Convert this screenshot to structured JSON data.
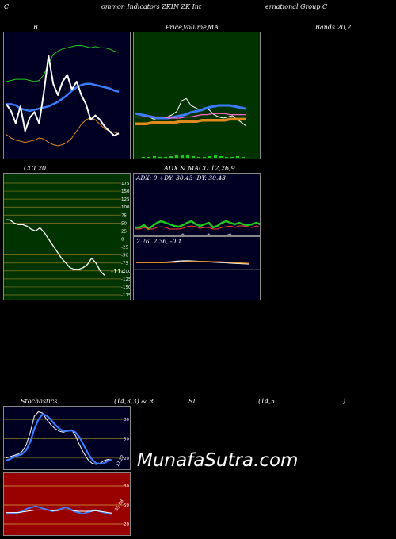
{
  "header": {
    "left": "C",
    "mid": "ommon Indicators ZKIN ZK Int",
    "right": "ernational Group C"
  },
  "titles": {
    "bands_left": "B",
    "bands_price": "Price,",
    "bands_volume": "Volume,",
    "bands_ma": "MA",
    "bands_right": "Bands 20,2",
    "cci": "CCI 20",
    "adx_macd": "ADX  & MACD 12,26,9",
    "stoch": "Stochastics",
    "stoch_params": "(14,3,3) & R",
    "rsi": "SI",
    "rsi_params": "(14,5",
    "rsi_close": ")"
  },
  "adx_readout": "ADX: 0  +DY: 30.43 -DY: 30.43",
  "macd_readout": "2.26,  2.36,  -0.1",
  "watermark": "MunafaSutra.com",
  "colors": {
    "bands_bg": "#000022",
    "price_bg": "#003300",
    "cci_bg": "#003300",
    "adx_bg": "#000022",
    "stoch_bg": "#000022",
    "rsi_bg": "#990000",
    "blue": "#3a7bff",
    "orange": "#e08a1e",
    "green": "#1ec81e"
  },
  "chart_data": [
    {
      "type": "line",
      "name": "bollinger",
      "ylim": [
        0,
        100
      ],
      "series": [
        {
          "name": "upper",
          "color": "#1ec81e",
          "values": [
            62,
            63,
            64,
            64,
            64,
            63,
            62,
            63,
            68,
            78,
            86,
            89,
            91,
            92,
            93,
            94,
            94,
            93,
            92,
            93,
            92,
            92,
            91,
            89,
            88
          ]
        },
        {
          "name": "middle",
          "color": "#3a7bff",
          "values": [
            42,
            42,
            41,
            38,
            37,
            36,
            37,
            38,
            39,
            40,
            42,
            44,
            47,
            50,
            54,
            57,
            59,
            60,
            60,
            59,
            58,
            57,
            56,
            54,
            53
          ]
        },
        {
          "name": "lower",
          "color": "#e08a1e",
          "values": [
            15,
            12,
            10,
            9,
            8,
            9,
            10,
            12,
            11,
            8,
            6,
            5,
            6,
            8,
            12,
            18,
            24,
            28,
            30,
            28,
            24,
            20,
            18,
            17,
            16
          ]
        },
        {
          "name": "price",
          "color": "#ffffff",
          "values": [
            42,
            36,
            25,
            40,
            18,
            30,
            35,
            25,
            52,
            85,
            60,
            50,
            62,
            68,
            55,
            62,
            50,
            42,
            28,
            32,
            28,
            22,
            18,
            14,
            16
          ]
        }
      ]
    },
    {
      "type": "line",
      "name": "price_ma",
      "ylim": [
        0,
        100
      ],
      "series": [
        {
          "name": "price",
          "color": "#ffffff",
          "values": [
            30,
            30,
            30,
            30,
            28,
            29,
            30,
            30,
            32,
            35,
            44,
            46,
            40,
            38,
            36,
            38,
            36,
            32,
            30,
            29,
            30,
            31,
            28,
            25,
            22
          ]
        },
        {
          "name": "ma_short",
          "color": "#3a7bff",
          "values": [
            33,
            32,
            31,
            30,
            29,
            29,
            29,
            30,
            31,
            32,
            34,
            35,
            36,
            38,
            39,
            40,
            40,
            40,
            39,
            38,
            37
          ]
        },
        {
          "name": "ma_mid",
          "color": "#ff66cc",
          "values": [
            30,
            30,
            30,
            30,
            30,
            30,
            29,
            29,
            29,
            30,
            30,
            31,
            32,
            32,
            33,
            33,
            33,
            32,
            32,
            32,
            32
          ]
        },
        {
          "name": "ma_long",
          "color": "#e08a1e",
          "values": [
            24,
            24,
            24,
            25,
            25,
            25,
            25,
            25,
            26,
            26,
            26,
            26,
            27,
            27,
            27,
            27,
            27,
            28,
            28,
            28,
            28
          ]
        }
      ]
    },
    {
      "type": "line",
      "name": "cci",
      "ylim": [
        -175,
        175
      ],
      "ticks": [
        "175",
        "150",
        "125",
        "100",
        "75",
        "50",
        "25",
        "0",
        "-25",
        "-50",
        "-75",
        "-100",
        "-125",
        "-150",
        "-175"
      ],
      "last_label": "-114",
      "series": [
        {
          "name": "cci",
          "color": "#ffffff",
          "values": [
            60,
            60,
            50,
            45,
            45,
            40,
            30,
            25,
            35,
            20,
            0,
            -20,
            -40,
            -60,
            -75,
            -90,
            -95,
            -95,
            -90,
            -80,
            -60,
            -75,
            -100,
            -114
          ]
        }
      ]
    },
    {
      "type": "line",
      "name": "adx",
      "ylim": [
        0,
        100
      ],
      "series": [
        {
          "name": "+DI",
          "color": "#1ec81e",
          "values": [
            32,
            32,
            35,
            30,
            34,
            38,
            40,
            38,
            36,
            34,
            33,
            35,
            38,
            40,
            36,
            34,
            36,
            38,
            32,
            34,
            38,
            40,
            38,
            36,
            38,
            36,
            35,
            36,
            38,
            36
          ]
        },
        {
          "name": "-DI",
          "color": "#ff3b3b",
          "values": [
            30,
            30,
            32,
            30,
            30,
            32,
            33,
            32,
            30,
            30,
            30,
            31,
            33,
            34,
            33,
            31,
            32,
            32,
            30,
            30,
            32,
            33,
            34,
            32,
            34,
            34,
            33,
            32,
            34,
            32
          ]
        },
        {
          "name": "ADX",
          "color": "#999999",
          "values": [
            20,
            12,
            8,
            5,
            10,
            18,
            22,
            14,
            8,
            10,
            20,
            24,
            18,
            12,
            8,
            10,
            20,
            24,
            18,
            10,
            12,
            22,
            24,
            16,
            10,
            18,
            22,
            16,
            14,
            12
          ]
        }
      ]
    },
    {
      "type": "line",
      "name": "macd",
      "ylim": [
        -10,
        10
      ],
      "series": [
        {
          "name": "macd",
          "color": "#ffffff",
          "values": [
            2.1,
            2.1,
            2.0,
            2.0,
            2.1,
            2.2,
            2.3,
            2.5,
            2.6,
            2.6,
            2.5,
            2.4,
            2.3,
            2.2,
            2.1,
            2.0,
            1.9,
            1.8,
            1.7,
            1.6
          ]
        },
        {
          "name": "signal",
          "color": "#e08a1e",
          "values": [
            2.0,
            2.0,
            2.0,
            2.0,
            2.0,
            2.0,
            2.1,
            2.2,
            2.3,
            2.4,
            2.4,
            2.4,
            2.4,
            2.3,
            2.3,
            2.2,
            2.1,
            2.0,
            1.9,
            1.8
          ]
        }
      ]
    },
    {
      "type": "line",
      "name": "stochastics",
      "ylim": [
        0,
        100
      ],
      "ticks": [
        "80",
        "50",
        "20"
      ],
      "last_label": "17.22",
      "series": [
        {
          "name": "%K",
          "color": "#ffffff",
          "values": [
            20,
            22,
            24,
            26,
            30,
            40,
            60,
            85,
            92,
            90,
            80,
            72,
            66,
            62,
            60,
            62,
            64,
            55,
            40,
            28,
            18,
            12,
            10,
            12,
            16,
            18,
            17
          ]
        },
        {
          "name": "%D",
          "color": "#3a7bff",
          "values": [
            16,
            18,
            22,
            24,
            26,
            32,
            45,
            65,
            80,
            88,
            86,
            80,
            72,
            66,
            62,
            62,
            63,
            60,
            52,
            40,
            28,
            18,
            12,
            11,
            12,
            16,
            17
          ]
        }
      ]
    },
    {
      "type": "line",
      "name": "rsi",
      "ylim": [
        0,
        100
      ],
      "ticks": [
        "80",
        "50",
        "20"
      ],
      "last_label": "35.98",
      "series": [
        {
          "name": "rsi",
          "color": "#3a7bff",
          "values": [
            36,
            36,
            37,
            38,
            40,
            44,
            46,
            48,
            46,
            44,
            42,
            40,
            42,
            44,
            46,
            44,
            40,
            38,
            36,
            38,
            40,
            42,
            40,
            38,
            36,
            36
          ]
        },
        {
          "name": "rsi_ma",
          "color": "#ffffff",
          "values": [
            38,
            38,
            38,
            38,
            39,
            40,
            41,
            42,
            42,
            42,
            42,
            41,
            41,
            42,
            42,
            42,
            41,
            40,
            40,
            40,
            40,
            41,
            40,
            39,
            38,
            37
          ]
        }
      ]
    }
  ]
}
